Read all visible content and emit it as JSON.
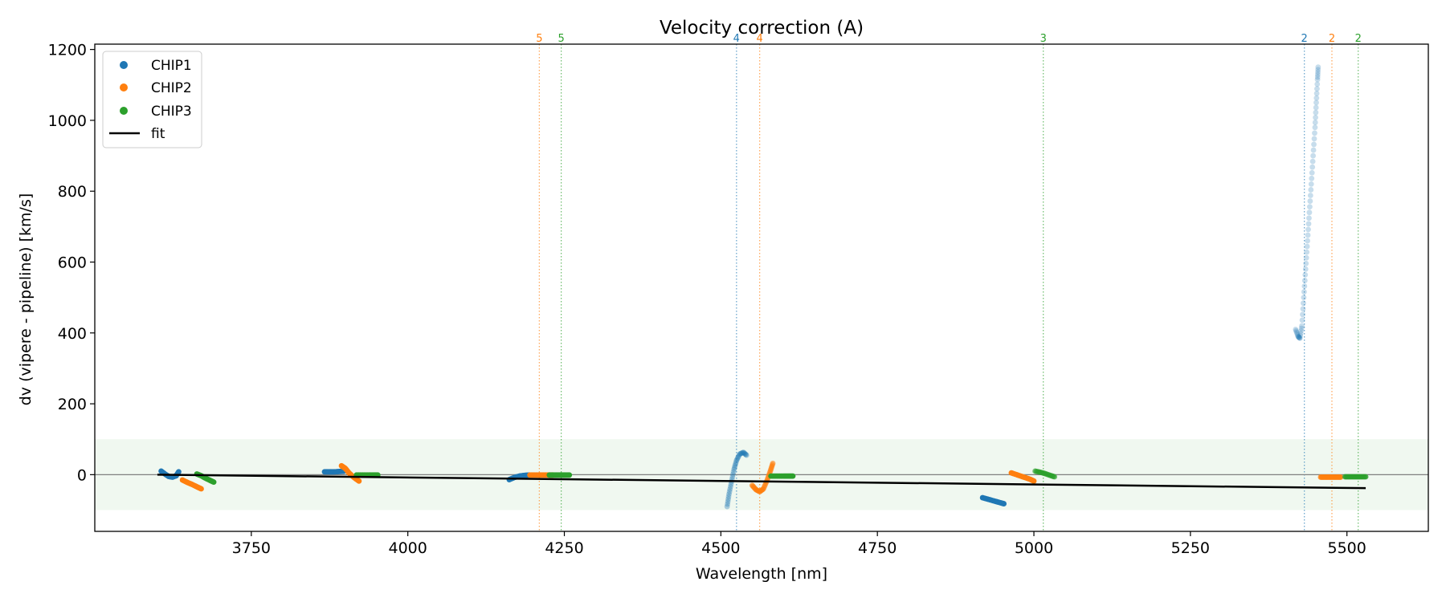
{
  "chart_data": {
    "type": "scatter",
    "title": "Velocity correction (A)",
    "xlabel": "Wavelength [nm]",
    "ylabel": "dv (vipere - pipeline) [km/s]",
    "xlim": [
      3500,
      5630
    ],
    "ylim": [
      -160,
      1215
    ],
    "xticks": [
      3750,
      4000,
      4250,
      4500,
      4750,
      5000,
      5250,
      5500
    ],
    "yticks": [
      0,
      200,
      400,
      600,
      800,
      1000,
      1200
    ],
    "grid": false,
    "legend_position": "top-left",
    "legend": [
      "CHIP1",
      "CHIP2",
      "CHIP3",
      "fit"
    ],
    "colors": {
      "CHIP1": "#1f77b4",
      "CHIP2": "#ff7f0e",
      "CHIP3": "#2ca02c",
      "fit": "#000000",
      "band": "#2ca02c",
      "zero_line": "#808080"
    },
    "band": [
      -100,
      100
    ],
    "fit": [
      [
        3600,
        0
      ],
      [
        5530,
        -38
      ]
    ],
    "order_markers": [
      {
        "x": 4210,
        "label": "5",
        "series": "CHIP2"
      },
      {
        "x": 4245,
        "label": "5",
        "series": "CHIP3"
      },
      {
        "x": 4525,
        "label": "4",
        "series": "CHIP1"
      },
      {
        "x": 4562,
        "label": "4",
        "series": "CHIP2"
      },
      {
        "x": 5015,
        "label": "3",
        "series": "CHIP3"
      },
      {
        "x": 5432,
        "label": "2",
        "series": "CHIP1"
      },
      {
        "x": 5476,
        "label": "2",
        "series": "CHIP2"
      },
      {
        "x": 5518,
        "label": "2",
        "series": "CHIP3"
      }
    ],
    "series": [
      {
        "name": "CHIP1",
        "alpha": 1.0,
        "points": [
          [
            3606,
            10
          ],
          [
            3612,
            2
          ],
          [
            3618,
            -5
          ],
          [
            3624,
            -7
          ],
          [
            3630,
            -3
          ],
          [
            3634,
            8
          ]
        ]
      },
      {
        "name": "CHIP1",
        "alpha": 1.0,
        "points": [
          [
            3867,
            8
          ],
          [
            3875,
            8
          ],
          [
            3883,
            8
          ],
          [
            3891,
            9
          ],
          [
            3898,
            10
          ]
        ]
      },
      {
        "name": "CHIP1",
        "alpha": 1.0,
        "points": [
          [
            4162,
            -14
          ],
          [
            4170,
            -8
          ],
          [
            4178,
            -4
          ],
          [
            4186,
            -2
          ],
          [
            4194,
            -1
          ]
        ]
      },
      {
        "name": "CHIP1",
        "alpha": 0.35,
        "points": [
          [
            4510,
            -90
          ],
          [
            4513,
            -55
          ],
          [
            4517,
            -20
          ],
          [
            4521,
            15
          ],
          [
            4525,
            40
          ],
          [
            4530,
            58
          ],
          [
            4536,
            63
          ],
          [
            4541,
            55
          ]
        ]
      },
      {
        "name": "CHIP1",
        "alpha": 1.0,
        "points": [
          [
            4918,
            -65
          ],
          [
            4928,
            -70
          ],
          [
            4938,
            -75
          ],
          [
            4946,
            -79
          ],
          [
            4952,
            -82
          ]
        ]
      },
      {
        "name": "CHIP1",
        "alpha": 0.25,
        "points": [
          [
            5418,
            410
          ],
          [
            5422,
            390
          ],
          [
            5425,
            385
          ],
          [
            5428,
            420
          ],
          [
            5431,
            500
          ],
          [
            5434,
            580
          ],
          [
            5437,
            660
          ],
          [
            5440,
            740
          ],
          [
            5443,
            820
          ],
          [
            5446,
            900
          ],
          [
            5449,
            980
          ],
          [
            5451,
            1050
          ],
          [
            5453,
            1115
          ],
          [
            5454,
            1150
          ]
        ]
      },
      {
        "name": "CHIP2",
        "alpha": 1.0,
        "points": [
          [
            3640,
            -15
          ],
          [
            3648,
            -22
          ],
          [
            3656,
            -28
          ],
          [
            3664,
            -35
          ],
          [
            3670,
            -40
          ]
        ]
      },
      {
        "name": "CHIP2",
        "alpha": 1.0,
        "points": [
          [
            3894,
            25
          ],
          [
            3900,
            18
          ],
          [
            3906,
            5
          ],
          [
            3914,
            -8
          ],
          [
            3922,
            -18
          ]
        ]
      },
      {
        "name": "CHIP2",
        "alpha": 1.0,
        "points": [
          [
            4195,
            -1
          ],
          [
            4205,
            -1
          ],
          [
            4215,
            -1
          ],
          [
            4225,
            -1
          ],
          [
            4232,
            -1
          ]
        ]
      },
      {
        "name": "CHIP2",
        "alpha": 0.6,
        "points": [
          [
            4550,
            -30
          ],
          [
            4556,
            -42
          ],
          [
            4562,
            -48
          ],
          [
            4568,
            -40
          ],
          [
            4574,
            -15
          ],
          [
            4579,
            10
          ],
          [
            4583,
            32
          ]
        ]
      },
      {
        "name": "CHIP2",
        "alpha": 1.0,
        "points": [
          [
            4964,
            5
          ],
          [
            4974,
            -1
          ],
          [
            4984,
            -7
          ],
          [
            4994,
            -13
          ],
          [
            5000,
            -18
          ]
        ]
      },
      {
        "name": "CHIP2",
        "alpha": 0.8,
        "points": [
          [
            5458,
            -7
          ],
          [
            5466,
            -7
          ],
          [
            5474,
            -7
          ],
          [
            5482,
            -7
          ],
          [
            5490,
            -7
          ]
        ]
      },
      {
        "name": "CHIP3",
        "alpha": 1.0,
        "points": [
          [
            3663,
            2
          ],
          [
            3670,
            -3
          ],
          [
            3677,
            -10
          ],
          [
            3684,
            -16
          ],
          [
            3690,
            -21
          ]
        ]
      },
      {
        "name": "CHIP3",
        "alpha": 1.0,
        "points": [
          [
            3918,
            -1
          ],
          [
            3928,
            -1
          ],
          [
            3938,
            -1
          ],
          [
            3946,
            -1
          ],
          [
            3952,
            -1
          ]
        ]
      },
      {
        "name": "CHIP3",
        "alpha": 1.0,
        "points": [
          [
            4226,
            -1
          ],
          [
            4234,
            -1
          ],
          [
            4242,
            -1
          ],
          [
            4250,
            -1
          ],
          [
            4258,
            -1
          ]
        ]
      },
      {
        "name": "CHIP3",
        "alpha": 1.0,
        "points": [
          [
            4580,
            -4
          ],
          [
            4590,
            -4
          ],
          [
            4600,
            -4
          ],
          [
            4608,
            -4
          ],
          [
            4615,
            -4
          ]
        ]
      },
      {
        "name": "CHIP3",
        "alpha": 0.6,
        "points": [
          [
            5002,
            10
          ],
          [
            5010,
            7
          ],
          [
            5018,
            3
          ],
          [
            5026,
            -2
          ],
          [
            5033,
            -6
          ]
        ]
      },
      {
        "name": "CHIP3",
        "alpha": 0.8,
        "points": [
          [
            5497,
            -6
          ],
          [
            5505,
            -6
          ],
          [
            5513,
            -6
          ],
          [
            5521,
            -6
          ],
          [
            5530,
            -6
          ]
        ]
      }
    ]
  }
}
